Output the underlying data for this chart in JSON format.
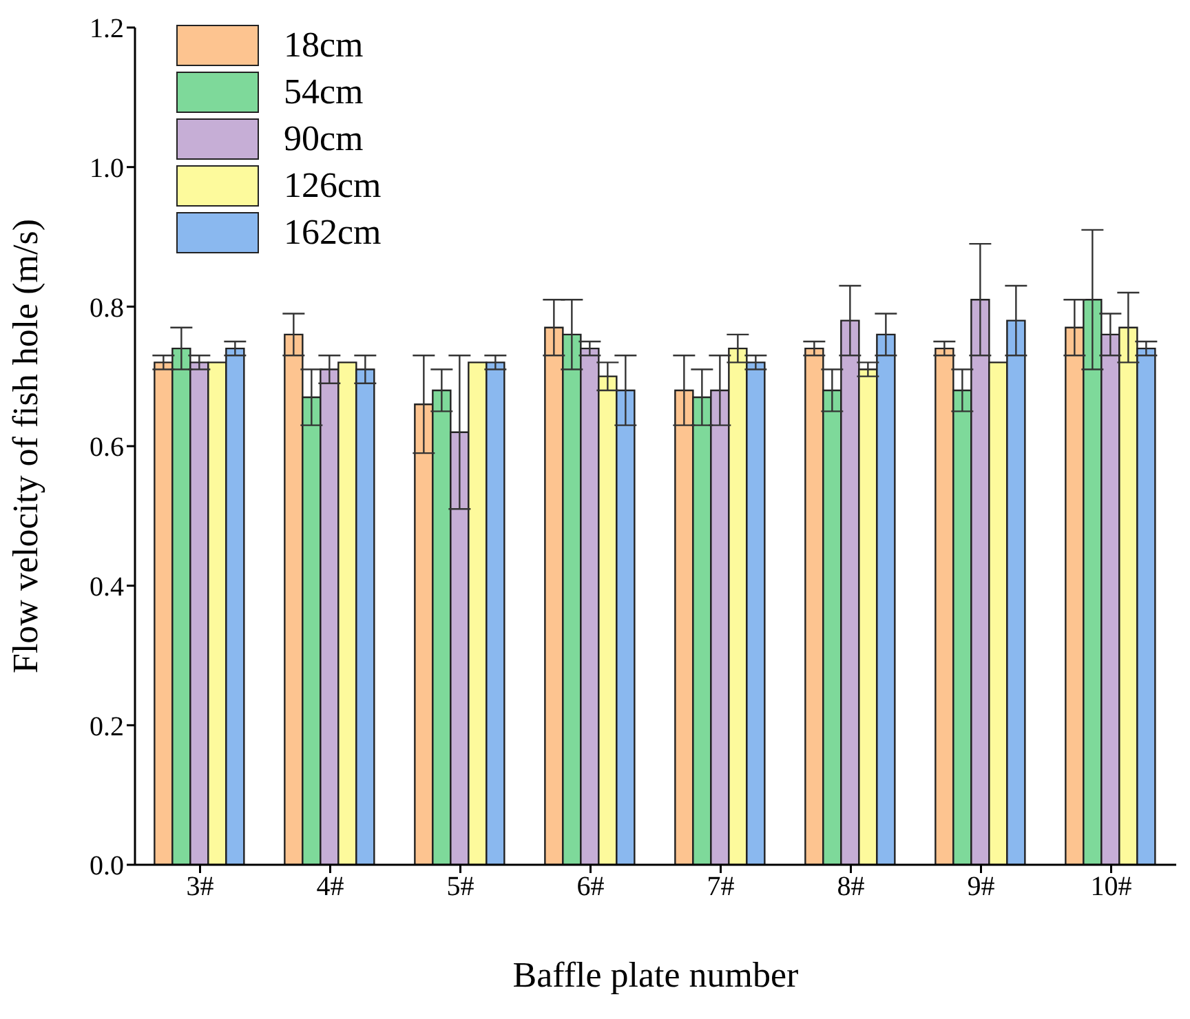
{
  "chart_data": {
    "type": "bar",
    "xlabel": "Baffle plate number",
    "ylabel": "Flow velocity of  fish hole (m/s)",
    "categories": [
      "3#",
      "4#",
      "5#",
      "6#",
      "7#",
      "8#",
      "9#",
      "10#"
    ],
    "series": [
      {
        "name": "18cm",
        "color": "#fdc490",
        "values": [
          0.72,
          0.76,
          0.66,
          0.77,
          0.68,
          0.74,
          0.74,
          0.77
        ],
        "errors": [
          0.01,
          0.03,
          0.07,
          0.04,
          0.05,
          0.01,
          0.01,
          0.04
        ]
      },
      {
        "name": "54cm",
        "color": "#7ed99a",
        "values": [
          0.74,
          0.67,
          0.68,
          0.76,
          0.67,
          0.68,
          0.68,
          0.81
        ],
        "errors": [
          0.03,
          0.04,
          0.03,
          0.05,
          0.04,
          0.03,
          0.03,
          0.1
        ]
      },
      {
        "name": "90cm",
        "color": "#c6aed6",
        "values": [
          0.72,
          0.71,
          0.62,
          0.74,
          0.68,
          0.78,
          0.81,
          0.76
        ],
        "errors": [
          0.01,
          0.02,
          0.11,
          0.01,
          0.05,
          0.05,
          0.08,
          0.03
        ]
      },
      {
        "name": "126cm",
        "color": "#fdfa9c",
        "values": [
          0.72,
          0.72,
          0.72,
          0.7,
          0.74,
          0.71,
          0.72,
          0.77
        ],
        "errors": [
          null,
          null,
          null,
          0.02,
          0.02,
          0.01,
          null,
          0.05
        ]
      },
      {
        "name": "162cm",
        "color": "#8ab8ef",
        "values": [
          0.74,
          0.71,
          0.72,
          0.68,
          0.72,
          0.76,
          0.78,
          0.74
        ],
        "errors": [
          0.01,
          0.02,
          0.01,
          0.05,
          0.01,
          0.03,
          0.05,
          0.01
        ]
      }
    ],
    "ylim": [
      0,
      1.2
    ],
    "yticks": [
      {
        "value": 0,
        "label": "0.0"
      },
      {
        "value": 0.2,
        "label": "0.2"
      },
      {
        "value": 0.4,
        "label": "0.4"
      },
      {
        "value": 0.6,
        "label": "0.6"
      },
      {
        "value": 0.8,
        "label": "0.8"
      },
      {
        "value": 1,
        "label": "1.0"
      },
      {
        "value": 1.2,
        "label": "1.2"
      }
    ],
    "grid": false,
    "legend": "top left"
  }
}
